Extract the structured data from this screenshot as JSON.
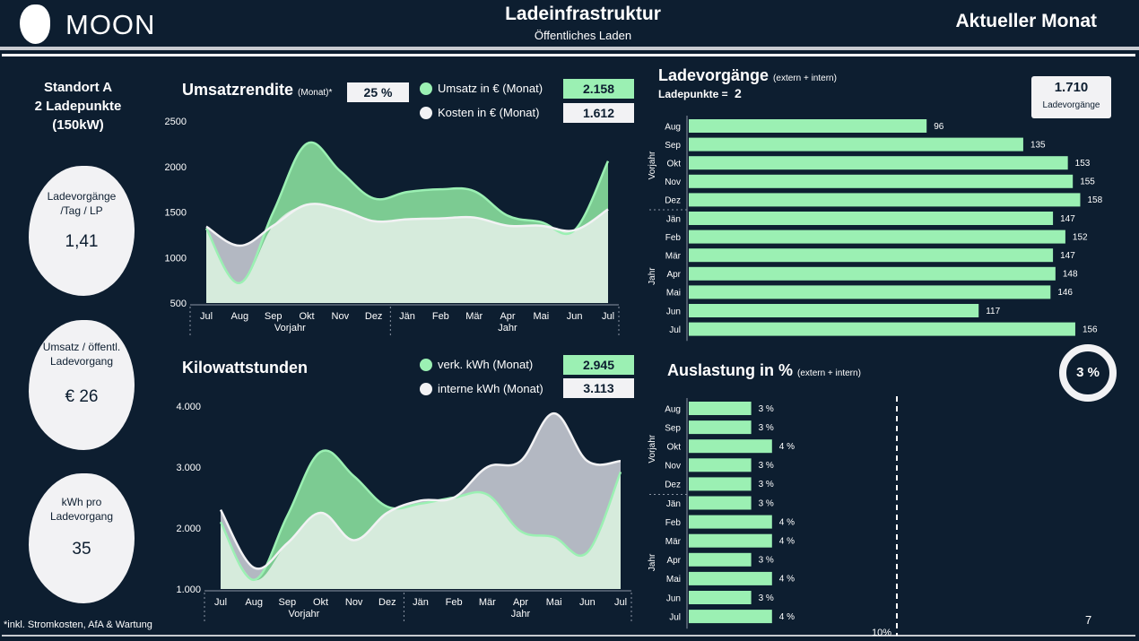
{
  "header": {
    "brand": "MOON",
    "title": "Ladeinfrastruktur",
    "subtitle": "Öffentliches Laden",
    "period": "Aktueller Monat"
  },
  "site": {
    "line1": "Standort A",
    "line2": "2 Ladepunkte",
    "line3": "(150kW)"
  },
  "kpis": [
    {
      "label1": "Ladevorgänge",
      "label2": "/Tag / LP",
      "value": "1,41"
    },
    {
      "label1": "Umsatz / öffentl.",
      "label2": "Ladevorgang",
      "value": "€ 26"
    },
    {
      "label1": "kWh pro",
      "label2": "Ladevorgang",
      "value": "35"
    }
  ],
  "umsatz": {
    "title": "Umsatzrendite",
    "title_suffix": "(Monat)*",
    "rendite": "25 %",
    "legend1": "Umsatz in € (Monat)",
    "value1": "2.158",
    "legend2": "Kosten in € (Monat)",
    "value2": "1.612"
  },
  "kwh": {
    "title": "Kilowattstunden",
    "legend1": "verk. kWh (Monat)",
    "value1": "2.945",
    "legend2": "interne kWh (Monat)",
    "value2": "3.113"
  },
  "lade": {
    "title": "Ladevorgänge",
    "title_suffix": "(extern + intern)",
    "lp_label": "Ladepunkte =",
    "lp_value": "2",
    "total": "1.710",
    "total_label": "Ladevorgänge"
  },
  "auslastung": {
    "title": "Auslastung in %",
    "title_suffix": "(extern + intern)",
    "ring_value": "3 %",
    "ref_label": "10%"
  },
  "footnote": "*inkl. Stromkosten, AfA & Wartung",
  "page_number": "7",
  "colors": {
    "background": "#0d1e30",
    "green": "#9bf0b3",
    "green_area": "#7ccb92",
    "grey_area": "#b3b8c2",
    "light_area": "#d6ebdc",
    "white": "#f2f2f4"
  },
  "chart_data": [
    {
      "id": "umsatz",
      "type": "area",
      "title": "Umsatzrendite",
      "categories": [
        "Jul",
        "Aug",
        "Sep",
        "Okt",
        "Nov",
        "Dez",
        "Jän",
        "Feb",
        "Mär",
        "Apr",
        "Mai",
        "Jun",
        "Jul"
      ],
      "group_labels": [
        "Vorjahr",
        "Jahr"
      ],
      "ylim": [
        500,
        2500
      ],
      "yticks": [
        "500",
        "1000",
        "1500",
        "2000",
        "2500"
      ],
      "series": [
        {
          "name": "Umsatz in € (Monat)",
          "values": [
            1320,
            720,
            1500,
            2250,
            1950,
            1650,
            1720,
            1750,
            1730,
            1460,
            1390,
            1300,
            2060
          ]
        },
        {
          "name": "Kosten in € (Monat)",
          "values": [
            1340,
            1130,
            1350,
            1580,
            1530,
            1400,
            1420,
            1430,
            1440,
            1350,
            1350,
            1300,
            1530
          ]
        }
      ]
    },
    {
      "id": "kwh",
      "type": "area",
      "title": "Kilowattstunden",
      "categories": [
        "Jul",
        "Aug",
        "Sep",
        "Okt",
        "Nov",
        "Dez",
        "Jän",
        "Feb",
        "Mär",
        "Apr",
        "Mai",
        "Jun",
        "Jul"
      ],
      "group_labels": [
        "Vorjahr",
        "Jahr"
      ],
      "ylim": [
        1000,
        4000
      ],
      "yticks": [
        "1.000",
        "2.000",
        "3.000",
        "4.000"
      ],
      "series": [
        {
          "name": "verk. kWh (Monat)",
          "values": [
            2100,
            1150,
            2200,
            3250,
            2850,
            2350,
            2400,
            2500,
            2550,
            1950,
            1850,
            1600,
            2920
          ]
        },
        {
          "name": "interne kWh (Monat)",
          "values": [
            2300,
            1350,
            1750,
            2250,
            1800,
            2250,
            2450,
            2500,
            3000,
            3100,
            3880,
            3100,
            3100
          ]
        }
      ]
    },
    {
      "id": "ladevorgaenge",
      "type": "bar",
      "orientation": "horizontal",
      "title": "Ladevorgänge",
      "categories": [
        "Aug",
        "Sep",
        "Okt",
        "Nov",
        "Dez",
        "Jän",
        "Feb",
        "Mär",
        "Apr",
        "Mai",
        "Jun",
        "Jul"
      ],
      "group_labels": [
        "Vorjahr",
        "Jahr"
      ],
      "values": [
        96,
        135,
        153,
        155,
        158,
        147,
        152,
        147,
        148,
        146,
        117,
        156
      ],
      "xlim": [
        0,
        160
      ]
    },
    {
      "id": "auslastung",
      "type": "bar",
      "orientation": "horizontal",
      "title": "Auslastung in %",
      "categories": [
        "Aug",
        "Sep",
        "Okt",
        "Nov",
        "Dez",
        "Jän",
        "Feb",
        "Mär",
        "Apr",
        "Mai",
        "Jun",
        "Jul"
      ],
      "group_labels": [
        "Vorjahr",
        "Jahr"
      ],
      "values": [
        3,
        3,
        4,
        3,
        3,
        3,
        4,
        4,
        3,
        4,
        3,
        4
      ],
      "value_labels": [
        "3 %",
        "3 %",
        "4 %",
        "3 %",
        "3 %",
        "3 %",
        "4 %",
        "4 %",
        "3 %",
        "4 %",
        "3 %",
        "4 %"
      ],
      "reference_line": 10,
      "xlim": [
        0,
        10
      ]
    }
  ]
}
